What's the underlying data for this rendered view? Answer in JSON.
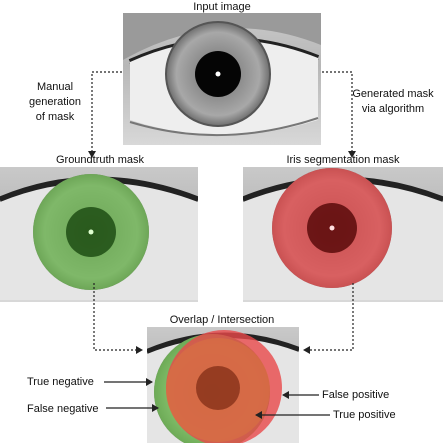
{
  "panels": {
    "input": {
      "title": "Input image"
    },
    "groundtruth": {
      "title": "Groundtruth mask"
    },
    "segmentation": {
      "title": "Iris segmentation mask"
    },
    "overlap": {
      "title": "Overlap / Intersection"
    }
  },
  "edges": {
    "manual": {
      "lines": [
        "Manual",
        "generation",
        "of mask"
      ]
    },
    "generated": {
      "lines": [
        "Generated mask",
        "via algorithm"
      ]
    }
  },
  "annotations": {
    "true_negative": "True negative",
    "false_negative": "False negative",
    "false_positive": "False positive",
    "true_positive": "True positive"
  },
  "colors": {
    "groundtruth_mask": "#6dbf4f",
    "segmentation_mask": "#e8484a",
    "overlap_mask": "#d9743f",
    "arrow": "#222222"
  }
}
